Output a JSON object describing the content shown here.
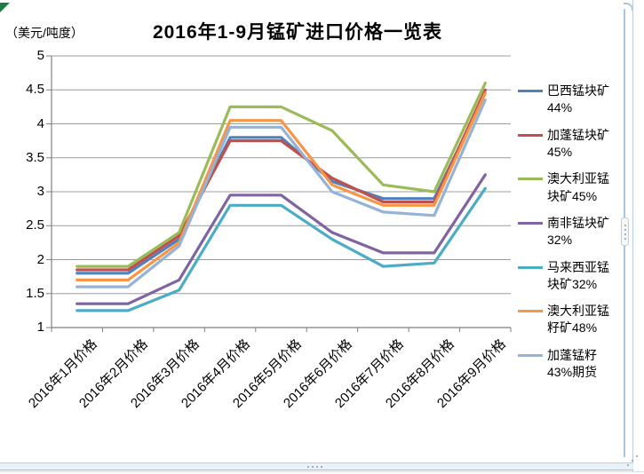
{
  "chart_data": {
    "type": "line",
    "title": "2016年1-9月锰矿进口价格一览表",
    "unit_label": "（美元/吨度）",
    "categories": [
      "2016年1月价格",
      "2016年2月价格",
      "2016年3月价格",
      "2016年4月价格",
      "2016年5月价格",
      "2016年6月价格",
      "2016年7月价格",
      "2016年8月价格",
      "2016年9月价格"
    ],
    "ylim": [
      1,
      5
    ],
    "y_ticks": [
      5,
      4.5,
      4,
      3.5,
      3,
      2.5,
      2,
      1.5,
      1
    ],
    "grid": true,
    "legend_position": "right",
    "series": [
      {
        "name": "巴西锰块矿44%",
        "legend_label": "巴西锰块矿\n44%",
        "color": "#4F81BD",
        "values": [
          1.8,
          1.8,
          2.3,
          3.8,
          3.8,
          3.15,
          2.9,
          2.9,
          4.45
        ]
      },
      {
        "name": "加蓬锰块矿45%",
        "legend_label": "加蓬锰块矿\n45%",
        "color": "#C0504D",
        "values": [
          1.85,
          1.85,
          2.35,
          3.75,
          3.75,
          3.2,
          2.85,
          2.85,
          4.5
        ]
      },
      {
        "name": "澳大利亚锰块矿45%",
        "legend_label": "澳大利亚锰\n块矿45%",
        "color": "#9BBB59",
        "values": [
          1.9,
          1.9,
          2.4,
          4.25,
          4.25,
          3.9,
          3.1,
          3.0,
          4.6
        ]
      },
      {
        "name": "南非锰块矿32%",
        "legend_label": "南非锰块矿\n32%",
        "color": "#8064A2",
        "values": [
          1.35,
          1.35,
          1.7,
          2.95,
          2.95,
          2.4,
          2.1,
          2.1,
          3.25
        ]
      },
      {
        "name": "马来西亚锰块矿32%",
        "legend_label": "马来西亚锰\n块矿32%",
        "color": "#4BACC6",
        "values": [
          1.25,
          1.25,
          1.55,
          2.8,
          2.8,
          2.3,
          1.9,
          1.95,
          3.05
        ]
      },
      {
        "name": "澳大利亚锰籽矿48%",
        "legend_label": "澳大利亚锰\n籽矿48%",
        "color": "#F79646",
        "values": [
          1.7,
          1.7,
          2.25,
          4.05,
          4.05,
          3.1,
          2.8,
          2.8,
          4.45
        ]
      },
      {
        "name": "加蓬锰籽43%期货",
        "legend_label": "加蓬锰籽\n43%期货",
        "color": "#95B3D7",
        "values": [
          1.6,
          1.6,
          2.2,
          3.95,
          3.95,
          3.0,
          2.7,
          2.65,
          4.35
        ]
      }
    ]
  },
  "frame": {
    "axis_color": "#7f7f7f",
    "grid_color": "#9c9c9c"
  }
}
